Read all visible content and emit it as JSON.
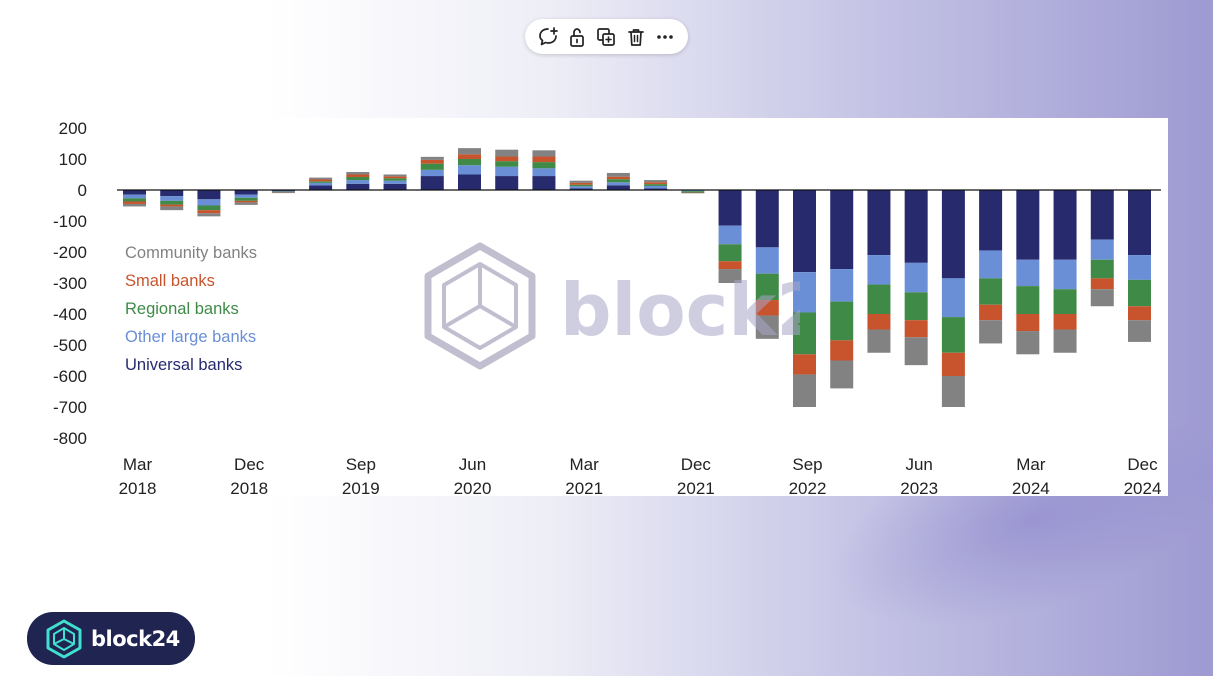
{
  "brand": {
    "name": "block24",
    "watermark": "block24"
  },
  "toolbar": {
    "items": [
      "comment-add-icon",
      "unlock-icon",
      "duplicate-icon",
      "trash-icon",
      "more-icon"
    ]
  },
  "colors": {
    "universal": "#272b6e",
    "other_large": "#6a8fd6",
    "regional": "#3f8a47",
    "small": "#c8542d",
    "community": "#828282"
  },
  "chart_data": {
    "type": "bar",
    "stacked": true,
    "categories": [
      "Mar 2018",
      "Jun 2018",
      "Sep 2018",
      "Dec 2018",
      "Mar 2019",
      "Jun 2019",
      "Sep 2019",
      "Dec 2019",
      "Mar 2020",
      "Jun 2020",
      "Sep 2020",
      "Dec 2020",
      "Mar 2021",
      "Jun 2021",
      "Sep 2021",
      "Dec 2021",
      "Mar 2022",
      "Jun 2022",
      "Sep 2022",
      "Dec 2022",
      "Mar 2023",
      "Jun 2023",
      "Sep 2023",
      "Dec 2023",
      "Mar 2024",
      "Jun 2024",
      "Sep 2024",
      "Dec 2024"
    ],
    "x_tick_labels": [
      {
        "index": 0,
        "month": "Mar",
        "year": "2018"
      },
      {
        "index": 3,
        "month": "Dec",
        "year": "2018"
      },
      {
        "index": 6,
        "month": "Sep",
        "year": "2019"
      },
      {
        "index": 9,
        "month": "Jun",
        "year": "2020"
      },
      {
        "index": 12,
        "month": "Mar",
        "year": "2021"
      },
      {
        "index": 15,
        "month": "Dec",
        "year": "2021"
      },
      {
        "index": 18,
        "month": "Sep",
        "year": "2022"
      },
      {
        "index": 21,
        "month": "Jun",
        "year": "2023"
      },
      {
        "index": 24,
        "month": "Mar",
        "year": "2024"
      },
      {
        "index": 27,
        "month": "Dec",
        "year": "2024"
      }
    ],
    "yticks": [
      "200",
      "100",
      "0",
      "-100",
      "-200",
      "-300",
      "-400",
      "-500",
      "-600",
      "-700",
      "-800"
    ],
    "ylim": [
      -800,
      200
    ],
    "legend_position": "left",
    "series": [
      {
        "name": "Universal banks",
        "color_key": "universal",
        "values": [
          -15,
          -20,
          -30,
          -15,
          -3,
          15,
          20,
          20,
          45,
          50,
          45,
          45,
          5,
          15,
          5,
          -2,
          -115,
          -185,
          -265,
          -255,
          -210,
          -235,
          -285,
          -195,
          -225,
          -225,
          -160,
          -210
        ]
      },
      {
        "name": "Other large banks",
        "color_key": "other_large",
        "values": [
          -12,
          -15,
          -20,
          -10,
          -2,
          8,
          12,
          10,
          20,
          30,
          30,
          25,
          7,
          10,
          8,
          -2,
          -60,
          -85,
          -130,
          -105,
          -95,
          -95,
          -125,
          -90,
          -85,
          -95,
          -65,
          -80
        ]
      },
      {
        "name": "Regional banks",
        "color_key": "regional",
        "values": [
          -10,
          -12,
          -15,
          -10,
          -1,
          5,
          10,
          8,
          20,
          20,
          18,
          20,
          5,
          10,
          6,
          -4,
          -55,
          -85,
          -135,
          -125,
          -95,
          -90,
          -115,
          -85,
          -90,
          -80,
          -60,
          -85
        ]
      },
      {
        "name": "Small banks",
        "color_key": "small",
        "values": [
          -8,
          -6,
          -10,
          -5,
          -1,
          6,
          8,
          6,
          12,
          15,
          15,
          18,
          6,
          8,
          6,
          -1,
          -25,
          -50,
          -65,
          -65,
          -50,
          -55,
          -75,
          -50,
          -55,
          -50,
          -35,
          -45
        ]
      },
      {
        "name": "Community banks",
        "color_key": "community",
        "values": [
          -8,
          -12,
          -10,
          -8,
          -3,
          6,
          8,
          6,
          10,
          20,
          22,
          20,
          7,
          12,
          7,
          -1,
          -45,
          -75,
          -105,
          -90,
          -75,
          -90,
          -100,
          -75,
          -75,
          -75,
          -55,
          -70
        ]
      }
    ]
  }
}
